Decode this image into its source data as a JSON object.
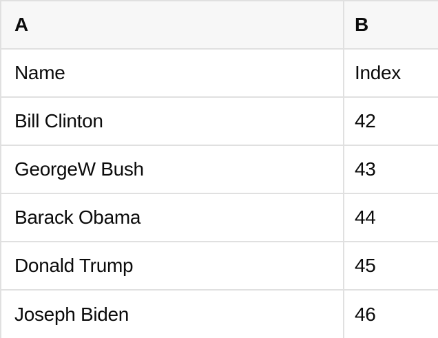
{
  "table": {
    "column_headers": [
      "A",
      "B"
    ],
    "rows": [
      [
        "Name",
        "Index"
      ],
      [
        "Bill Clinton",
        "42"
      ],
      [
        "GeorgeW Bush",
        "43"
      ],
      [
        "Barack Obama",
        "44"
      ],
      [
        "Donald Trump",
        "45"
      ],
      [
        "Joseph Biden",
        "46"
      ]
    ]
  },
  "colors": {
    "grid_border": "#e0e0e0",
    "header_background": "#f7f7f7",
    "row_background": "#ffffff",
    "text": "#0b0b0b"
  }
}
